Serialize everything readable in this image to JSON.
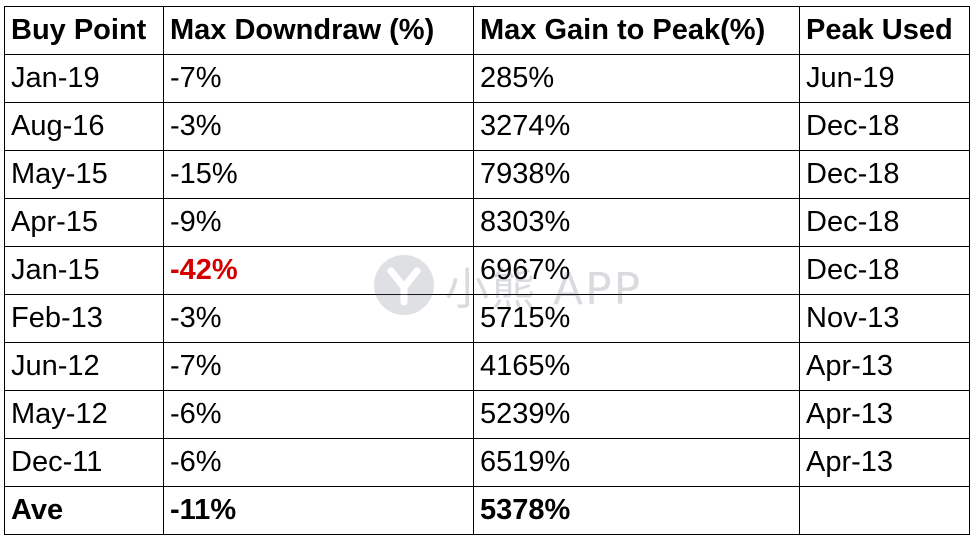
{
  "table": {
    "headers": [
      "Buy Point",
      "Max Downdraw (%)",
      "Max Gain to Peak(%)",
      "Peak Used"
    ],
    "rows": [
      [
        "Jan-19",
        "-7%",
        "285%",
        "Jun-19"
      ],
      [
        "Aug-16",
        "-3%",
        "3274%",
        "Dec-18"
      ],
      [
        "May-15",
        "-15%",
        "7938%",
        "Dec-18"
      ],
      [
        "Apr-15",
        "-9%",
        "8303%",
        "Dec-18"
      ],
      [
        "Jan-15",
        "-42%",
        "6967%",
        "Dec-18"
      ],
      [
        "Feb-13",
        "-3%",
        "5715%",
        "Nov-13"
      ],
      [
        "Jun-12",
        "-7%",
        "4165%",
        "Apr-13"
      ],
      [
        "May-12",
        "-6%",
        "5239%",
        "Apr-13"
      ],
      [
        "Dec-11",
        "-6%",
        "6519%",
        "Apr-13"
      ]
    ],
    "total": [
      "Ave",
      "-11%",
      "5378%",
      ""
    ],
    "highlight_color": "#d40000"
  },
  "watermark": {
    "text": "小熊 APP",
    "icon": "bear-logo-icon"
  }
}
